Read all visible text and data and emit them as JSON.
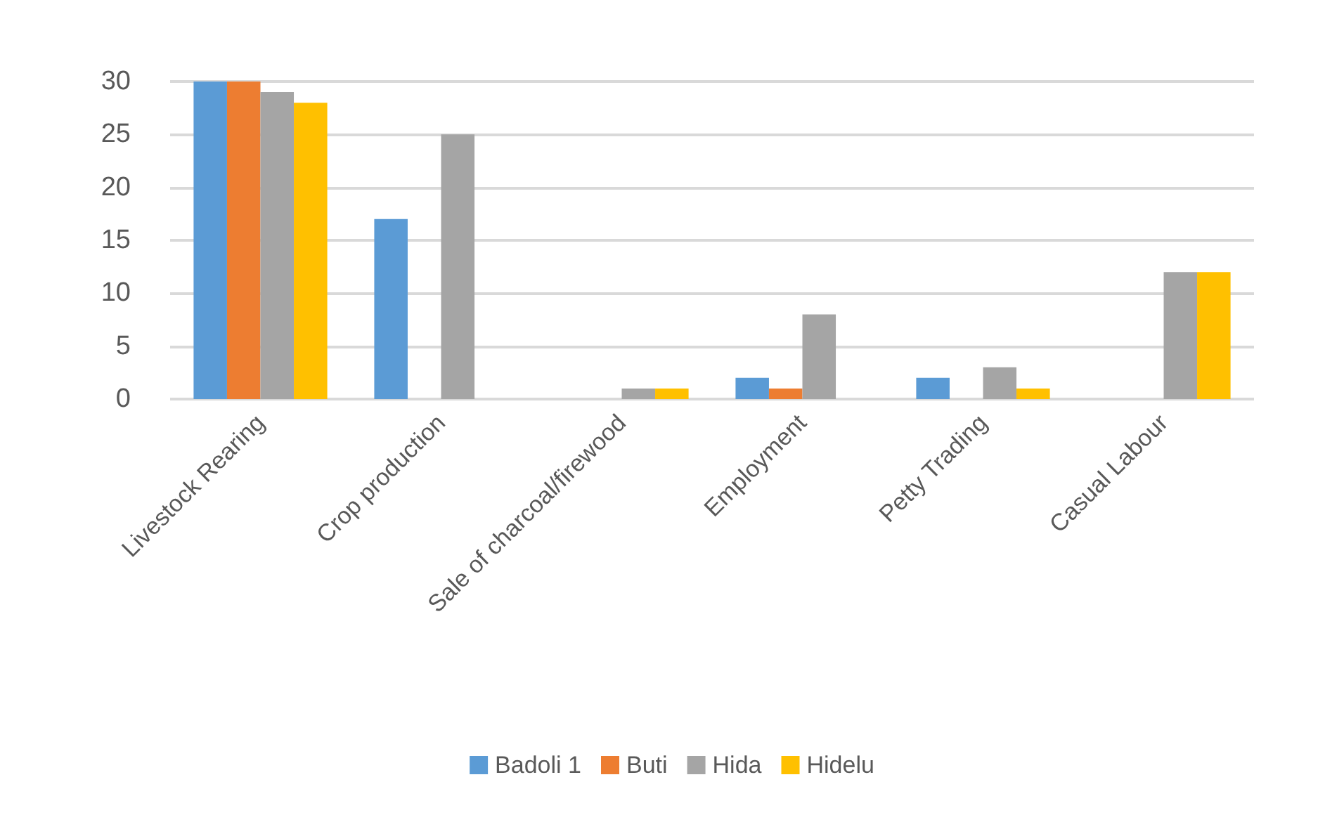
{
  "chart_data": {
    "type": "bar",
    "categories": [
      "Livestock Rearing",
      "Crop production",
      "Sale of charcoal/firewood",
      "Employment",
      "Petty Trading",
      "Casual Labour"
    ],
    "series": [
      {
        "name": "Badoli 1",
        "color": "#5b9bd5",
        "values": [
          30,
          17,
          0,
          2,
          2,
          0
        ]
      },
      {
        "name": "Buti",
        "color": "#ed7d31",
        "values": [
          30,
          0,
          0,
          1,
          0,
          0
        ]
      },
      {
        "name": "Hida",
        "color": "#a5a5a5",
        "values": [
          29,
          25,
          1,
          8,
          3,
          12
        ]
      },
      {
        "name": "Hidelu",
        "color": "#ffc000",
        "values": [
          28,
          0,
          1,
          0,
          1,
          12
        ]
      }
    ],
    "ylim": [
      0,
      30
    ],
    "yticks": [
      0,
      5,
      10,
      15,
      20,
      25,
      30
    ],
    "grid": "y",
    "legend": "bottom"
  }
}
